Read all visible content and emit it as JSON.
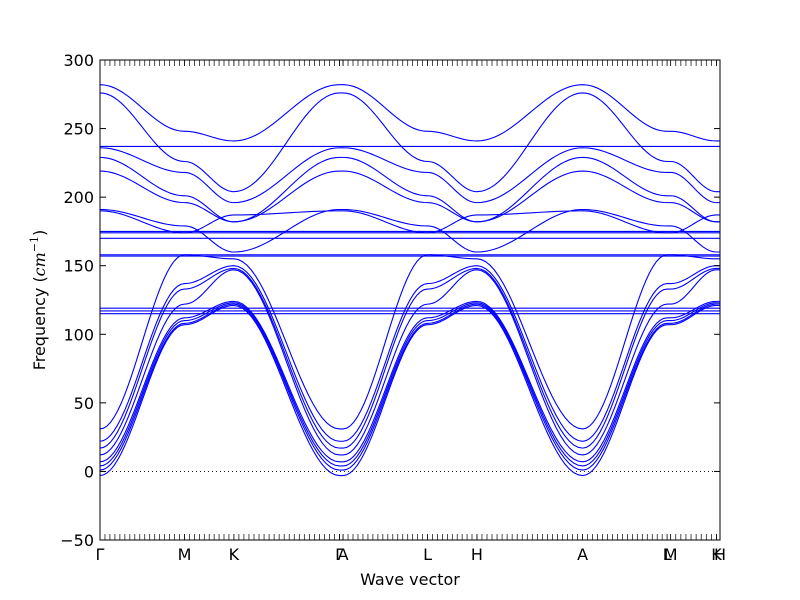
{
  "chart_data": {
    "type": "line",
    "title": "",
    "xlabel": "Wave vector",
    "ylabel": "Frequency ($cm^{-1}$)",
    "ylabel_parts": {
      "text": "Frequency (",
      "math_base": "cm",
      "math_sup": "−1",
      "close": ")"
    },
    "ylim": [
      -50,
      300
    ],
    "yticks": [
      -50,
      0,
      50,
      100,
      150,
      200,
      250,
      300
    ],
    "ytick_labels": [
      "−50",
      "0",
      "50",
      "100",
      "150",
      "200",
      "250",
      "300"
    ],
    "xlim": [
      0,
      8.8
    ],
    "high_symmetry_points": [
      {
        "label": "Γ",
        "x": 0.0
      },
      {
        "label": "M",
        "x": 1.2
      },
      {
        "label": "K",
        "x": 1.9
      },
      {
        "label": "Γ",
        "x": 3.4
      },
      {
        "label": "A",
        "x": 3.45
      },
      {
        "label": "L",
        "x": 4.65
      },
      {
        "label": "H",
        "x": 5.35
      },
      {
        "label": "A",
        "x": 6.85
      },
      {
        "label": "L",
        "x": 8.05
      },
      {
        "label": "M",
        "x": 8.1
      },
      {
        "label": "K",
        "x": 8.75
      },
      {
        "label": "H",
        "x": 8.8
      }
    ],
    "zero_line": {
      "y": 0,
      "style": "dotted"
    },
    "series_color": "#0000ff",
    "bands": [
      {
        "gamma": 282,
        "m": 248,
        "k": 241
      },
      {
        "gamma": 276,
        "m": 226,
        "k": 204
      },
      {
        "gamma": 237,
        "m": 237,
        "k": 237
      },
      {
        "gamma": 236,
        "m": 218,
        "k": 196
      },
      {
        "gamma": 229,
        "m": 201,
        "k": 182
      },
      {
        "gamma": 219,
        "m": 196,
        "k": 182
      },
      {
        "gamma": 191,
        "m": 179,
        "k": 160
      },
      {
        "gamma": 190,
        "m": 174,
        "k": 187
      },
      {
        "gamma": 175,
        "m": 175,
        "k": 175
      },
      {
        "gamma": 174,
        "m": 174,
        "k": 174
      },
      {
        "gamma": 170,
        "m": 170,
        "k": 170
      },
      {
        "gamma": 158,
        "m": 158,
        "k": 158
      },
      {
        "gamma": 157,
        "m": 157,
        "k": 157
      },
      {
        "gamma": 119,
        "m": 119,
        "k": 119
      },
      {
        "gamma": 117,
        "m": 117,
        "k": 117
      },
      {
        "gamma": 115,
        "m": 115,
        "k": 115
      },
      {
        "gamma": 31,
        "m": 158,
        "k": 155
      },
      {
        "gamma": 22,
        "m": 137,
        "k": 150
      },
      {
        "gamma": 17,
        "m": 133,
        "k": 148
      },
      {
        "gamma": 12,
        "m": 122,
        "k": 147
      },
      {
        "gamma": 7,
        "m": 112,
        "k": 124
      },
      {
        "gamma": 4,
        "m": 110,
        "k": 123
      },
      {
        "gamma": 1,
        "m": 108,
        "k": 122
      },
      {
        "gamma": -3,
        "m": 107,
        "k": 121
      }
    ]
  }
}
